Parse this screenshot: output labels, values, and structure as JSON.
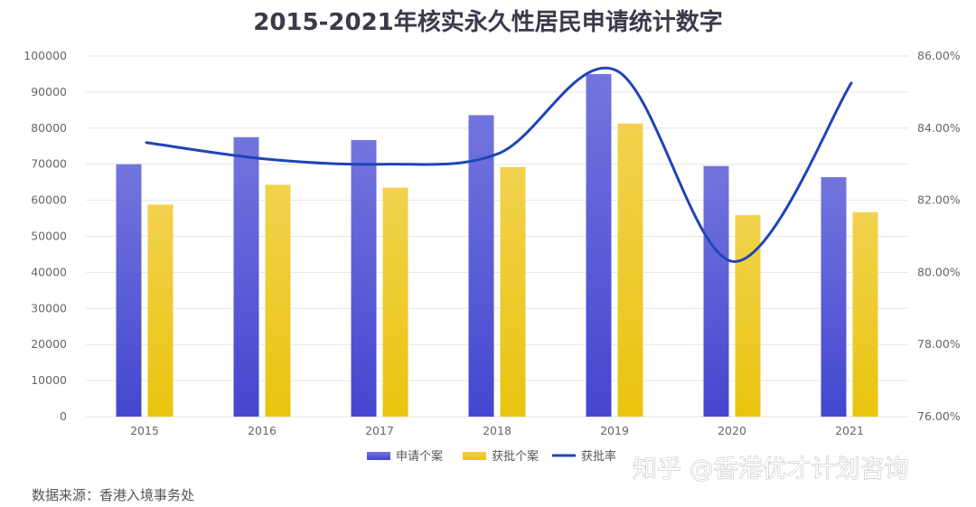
{
  "chart_data": {
    "type": "bar",
    "title": "2015-2021年核实永久性居民申请统计数字",
    "categories": [
      "2015",
      "2016",
      "2017",
      "2018",
      "2019",
      "2020",
      "2021"
    ],
    "series": [
      {
        "name": "申请个案",
        "type": "bar",
        "axis": "left",
        "color": "#5558d6",
        "values": [
          70000,
          77500,
          76700,
          83600,
          95000,
          69500,
          66400
        ]
      },
      {
        "name": "获批个案",
        "type": "bar",
        "axis": "left",
        "color": "#f0cf2c",
        "values": [
          58800,
          64300,
          63500,
          69200,
          81300,
          55900,
          56700
        ]
      },
      {
        "name": "获批率",
        "type": "line",
        "axis": "right",
        "color": "#1f44b8",
        "values": [
          83.6,
          83.15,
          83.0,
          83.3,
          85.6,
          80.3,
          85.25
        ]
      }
    ],
    "y_left": {
      "min": 0,
      "max": 100000,
      "step": 10000,
      "tick_labels": [
        "0",
        "10000",
        "20000",
        "30000",
        "40000",
        "50000",
        "60000",
        "70000",
        "80000",
        "90000",
        "100000"
      ]
    },
    "y_right": {
      "min": 76,
      "max": 86,
      "step": 2,
      "tick_labels": [
        "76.00%",
        "78.00%",
        "80.00%",
        "82.00%",
        "84.00%",
        "86.00%"
      ]
    },
    "grid": true,
    "legend_position": "bottom-center"
  },
  "source_note": "数据来源：香港入境事务处",
  "watermark": "知乎 @香港优才计划咨询"
}
